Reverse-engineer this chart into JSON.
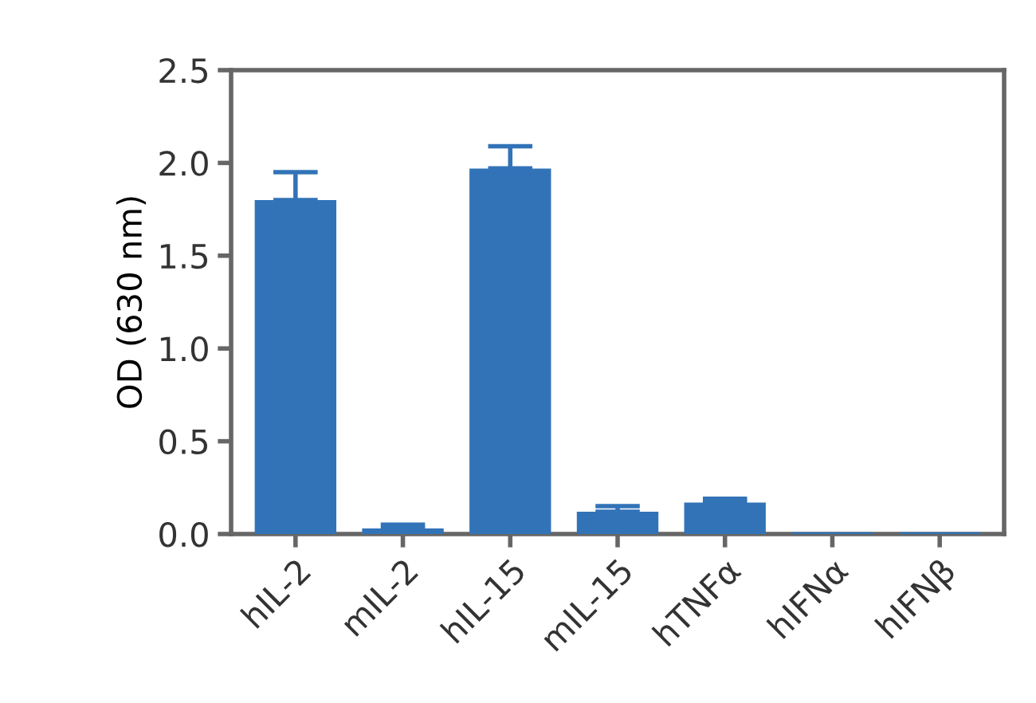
{
  "chart_data": {
    "type": "bar",
    "ylabel": "OD (630 nm)",
    "categories": [
      "hIL-2",
      "mIL-2",
      "hIL-15",
      "mIL-15",
      "hTNFα",
      "hIFNα",
      "hIFNβ"
    ],
    "values": [
      1.8,
      0.03,
      1.97,
      0.12,
      0.17,
      0.01,
      0.01
    ],
    "errors": [
      [
        1.8,
        1.95
      ],
      [
        0.03,
        0.05
      ],
      [
        1.97,
        2.09
      ],
      [
        0.12,
        0.15
      ],
      [
        0.17,
        0.19
      ],
      null,
      null
    ],
    "color": "#3273b8",
    "ylim": [
      0,
      2.5
    ],
    "yticks": [
      {
        "value": 0,
        "label": "0.0"
      },
      {
        "value": 0.5,
        "label": "0.5"
      },
      {
        "value": 1,
        "label": "1.0"
      },
      {
        "value": 1.5,
        "label": "1.5"
      },
      {
        "value": 2,
        "label": "2.0"
      },
      {
        "value": 2.5,
        "label": "2.5"
      }
    ],
    "grid": false
  }
}
